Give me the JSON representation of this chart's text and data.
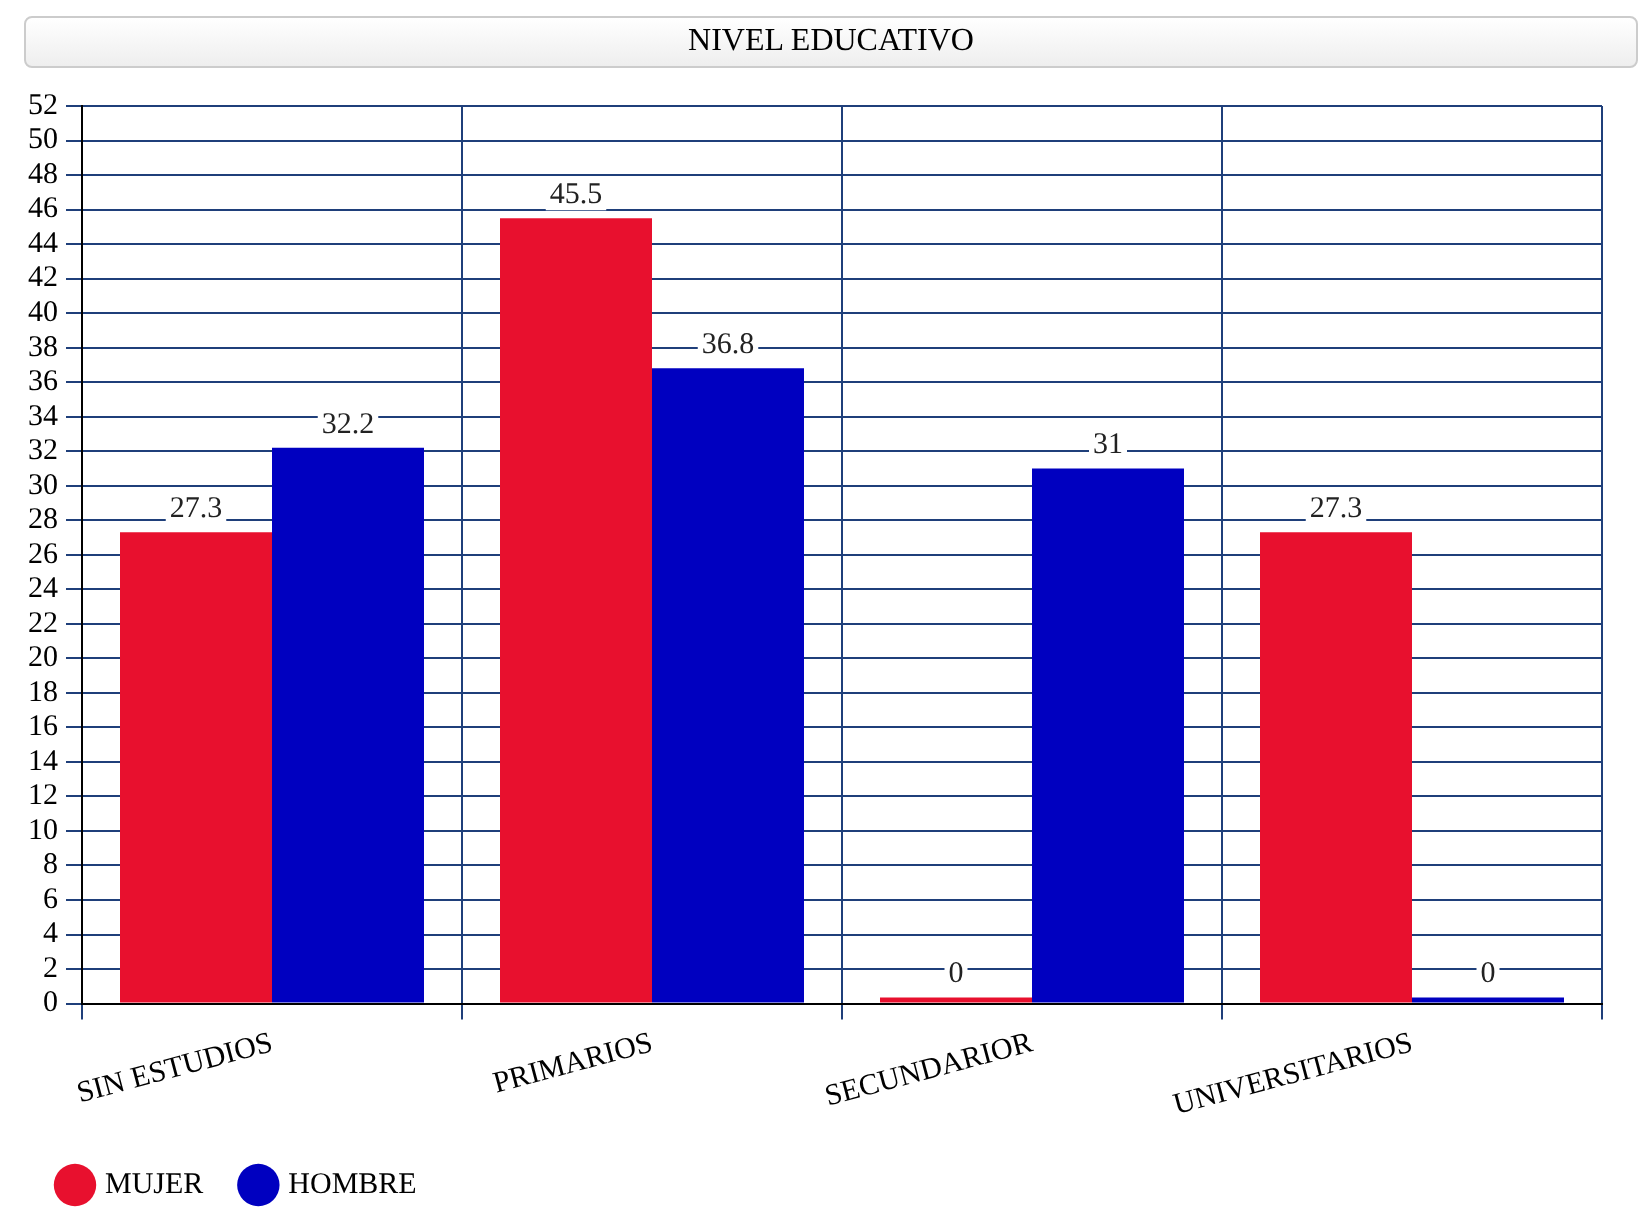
{
  "chart_data": {
    "type": "bar",
    "title": "NIVEL EDUCATIVO",
    "categories": [
      "SIN ESTUDIOS",
      "PRIMARIOS",
      "SECUNDARIOR",
      "UNIVERSITARIOS"
    ],
    "series": [
      {
        "name": "MUJER",
        "color": "#e8102e",
        "values": [
          27.3,
          45.5,
          0,
          27.3
        ]
      },
      {
        "name": "HOMBRE",
        "color": "#0000c0",
        "values": [
          32.2,
          36.8,
          31,
          0
        ]
      }
    ],
    "ylim": [
      0,
      52
    ],
    "yticks": [
      0,
      2,
      4,
      6,
      8,
      10,
      12,
      14,
      16,
      18,
      20,
      22,
      24,
      26,
      28,
      30,
      32,
      34,
      36,
      38,
      40,
      42,
      44,
      46,
      48,
      50,
      52
    ],
    "grid": true,
    "legend": "bottom left",
    "data_labels": true
  }
}
